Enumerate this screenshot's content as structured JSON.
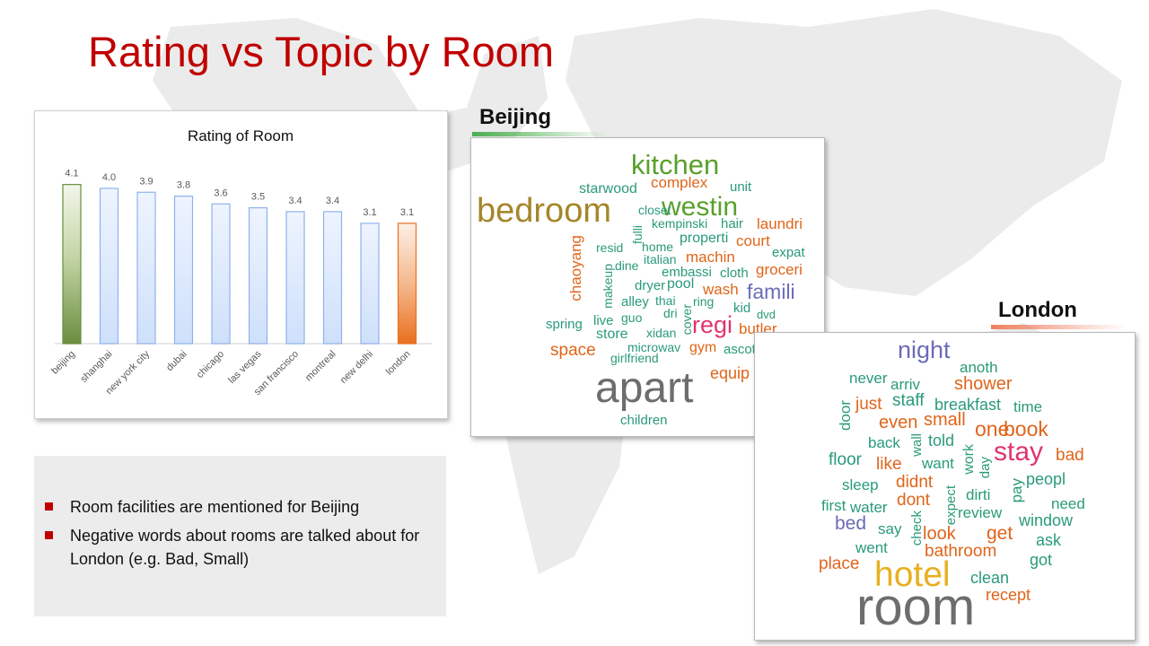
{
  "slide": {
    "title": "Rating vs Topic by Room"
  },
  "chart_data": {
    "type": "bar",
    "title": "Rating of Room",
    "categories": [
      "beijing",
      "shanghai",
      "new york city",
      "dubai",
      "chicago",
      "las vegas",
      "san francisco",
      "montreal",
      "new delhi",
      "london"
    ],
    "values": [
      4.1,
      4.0,
      3.9,
      3.8,
      3.6,
      3.5,
      3.4,
      3.4,
      3.1,
      3.1
    ],
    "value_labels": [
      "4.1",
      "4.0",
      "3.9",
      "3.8",
      "3.6",
      "3.5",
      "3.4",
      "3.4",
      "3.1",
      "3.1"
    ],
    "bar_colors": [
      "#6a8d3e",
      "#8fb3ea",
      "#8fb3ea",
      "#8fb3ea",
      "#8fb3ea",
      "#8fb3ea",
      "#8fb3ea",
      "#8fb3ea",
      "#8fb3ea",
      "#e8701f"
    ],
    "ylim": [
      0,
      4.6
    ],
    "grid": false,
    "legend": "none"
  },
  "bullets": [
    "Room facilities are mentioned for Beijing",
    "Negative words about rooms are talked about for London (e.g. Bad, Small)"
  ],
  "colors": {
    "title": "#C00000",
    "bullet": "#C00000",
    "beijing_accent": "#4caf50",
    "london_accent": "#f08060"
  },
  "wordclouds": {
    "beijing": {
      "label": "Beijing",
      "words": [
        {
          "text": "kitchen",
          "color": "#5aa02c"
        },
        {
          "text": "starwood",
          "color": "#2a9a7a"
        },
        {
          "text": "complex",
          "color": "#e0651a"
        },
        {
          "text": "unit",
          "color": "#2a9a7a"
        },
        {
          "text": "westin",
          "color": "#5aa02c"
        },
        {
          "text": "bedroom",
          "color": "#a6862a"
        },
        {
          "text": "closet",
          "color": "#2a9a7a"
        },
        {
          "text": "kempinski",
          "color": "#2a9a7a"
        },
        {
          "text": "hair",
          "color": "#2a9a7a"
        },
        {
          "text": "laundri",
          "color": "#e0651a"
        },
        {
          "text": "chaoyang",
          "color": "#e0651a"
        },
        {
          "text": "fulli",
          "color": "#2a9a7a"
        },
        {
          "text": "resid",
          "color": "#2a9a7a"
        },
        {
          "text": "home",
          "color": "#2a9a7a"
        },
        {
          "text": "properti",
          "color": "#2a9a7a"
        },
        {
          "text": "court",
          "color": "#e0651a"
        },
        {
          "text": "expat",
          "color": "#2a9a7a"
        },
        {
          "text": "makeup",
          "color": "#2a9a7a"
        },
        {
          "text": "dine",
          "color": "#2a9a7a"
        },
        {
          "text": "italian",
          "color": "#2a9a7a"
        },
        {
          "text": "machin",
          "color": "#e0651a"
        },
        {
          "text": "embassi",
          "color": "#2a9a7a"
        },
        {
          "text": "cloth",
          "color": "#2a9a7a"
        },
        {
          "text": "groceri",
          "color": "#e0651a"
        },
        {
          "text": "dryer",
          "color": "#2a9a7a"
        },
        {
          "text": "pool",
          "color": "#2a9a7a"
        },
        {
          "text": "wash",
          "color": "#e0651a"
        },
        {
          "text": "famili",
          "color": "#6b6bb8"
        },
        {
          "text": "alley",
          "color": "#2a9a7a"
        },
        {
          "text": "thai",
          "color": "#2a9a7a"
        },
        {
          "text": "ring",
          "color": "#2a9a7a"
        },
        {
          "text": "dri",
          "color": "#2a9a7a"
        },
        {
          "text": "cover",
          "color": "#2a9a7a"
        },
        {
          "text": "kid",
          "color": "#2a9a7a"
        },
        {
          "text": "dvd",
          "color": "#2a9a7a"
        },
        {
          "text": "spring",
          "color": "#2a9a7a"
        },
        {
          "text": "live",
          "color": "#2a9a7a"
        },
        {
          "text": "guo",
          "color": "#2a9a7a"
        },
        {
          "text": "regi",
          "color": "#e0336f"
        },
        {
          "text": "butler",
          "color": "#e0651a"
        },
        {
          "text": "store",
          "color": "#2a9a7a"
        },
        {
          "text": "xidan",
          "color": "#2a9a7a"
        },
        {
          "text": "space",
          "color": "#e0651a"
        },
        {
          "text": "microwav",
          "color": "#2a9a7a"
        },
        {
          "text": "gym",
          "color": "#e0651a"
        },
        {
          "text": "ascott",
          "color": "#2a9a7a"
        },
        {
          "text": "girlfriend",
          "color": "#2a9a7a"
        },
        {
          "text": "equip",
          "color": "#e0651a"
        },
        {
          "text": "apart",
          "color": "#6d6d6d"
        },
        {
          "text": "children",
          "color": "#2a9a7a"
        }
      ]
    },
    "london": {
      "label": "London",
      "words": [
        {
          "text": "night",
          "color": "#6b6bb8"
        },
        {
          "text": "never",
          "color": "#2a9a7a"
        },
        {
          "text": "anoth",
          "color": "#2a9a7a"
        },
        {
          "text": "arriv",
          "color": "#2a9a7a"
        },
        {
          "text": "shower",
          "color": "#e0651a"
        },
        {
          "text": "door",
          "color": "#2a9a7a"
        },
        {
          "text": "just",
          "color": "#e0651a"
        },
        {
          "text": "staff",
          "color": "#2a9a7a"
        },
        {
          "text": "breakfast",
          "color": "#2a9a7a"
        },
        {
          "text": "time",
          "color": "#2a9a7a"
        },
        {
          "text": "even",
          "color": "#e0651a"
        },
        {
          "text": "small",
          "color": "#e0651a"
        },
        {
          "text": "one",
          "color": "#e0651a"
        },
        {
          "text": "book",
          "color": "#e0651a"
        },
        {
          "text": "back",
          "color": "#2a9a7a"
        },
        {
          "text": "wall",
          "color": "#2a9a7a"
        },
        {
          "text": "told",
          "color": "#2a9a7a"
        },
        {
          "text": "stay",
          "color": "#e0336f"
        },
        {
          "text": "floor",
          "color": "#2a9a7a"
        },
        {
          "text": "like",
          "color": "#e0651a"
        },
        {
          "text": "want",
          "color": "#2a9a7a"
        },
        {
          "text": "work",
          "color": "#2a9a7a"
        },
        {
          "text": "day",
          "color": "#2a9a7a"
        },
        {
          "text": "bad",
          "color": "#e0651a"
        },
        {
          "text": "sleep",
          "color": "#2a9a7a"
        },
        {
          "text": "didnt",
          "color": "#e0651a"
        },
        {
          "text": "pay",
          "color": "#2a9a7a"
        },
        {
          "text": "peopl",
          "color": "#2a9a7a"
        },
        {
          "text": "first",
          "color": "#2a9a7a"
        },
        {
          "text": "water",
          "color": "#2a9a7a"
        },
        {
          "text": "dont",
          "color": "#e0651a"
        },
        {
          "text": "expect",
          "color": "#2a9a7a"
        },
        {
          "text": "dirti",
          "color": "#2a9a7a"
        },
        {
          "text": "need",
          "color": "#2a9a7a"
        },
        {
          "text": "bed",
          "color": "#6b6bb8"
        },
        {
          "text": "say",
          "color": "#2a9a7a"
        },
        {
          "text": "check",
          "color": "#2a9a7a"
        },
        {
          "text": "review",
          "color": "#2a9a7a"
        },
        {
          "text": "window",
          "color": "#2a9a7a"
        },
        {
          "text": "look",
          "color": "#e0651a"
        },
        {
          "text": "get",
          "color": "#e0651a"
        },
        {
          "text": "went",
          "color": "#2a9a7a"
        },
        {
          "text": "ask",
          "color": "#2a9a7a"
        },
        {
          "text": "bathroom",
          "color": "#e0651a"
        },
        {
          "text": "got",
          "color": "#2a9a7a"
        },
        {
          "text": "place",
          "color": "#e0651a"
        },
        {
          "text": "hotel",
          "color": "#e8b020"
        },
        {
          "text": "clean",
          "color": "#2a9a7a"
        },
        {
          "text": "recept",
          "color": "#e0651a"
        },
        {
          "text": "room",
          "color": "#6d6d6d"
        }
      ]
    }
  }
}
